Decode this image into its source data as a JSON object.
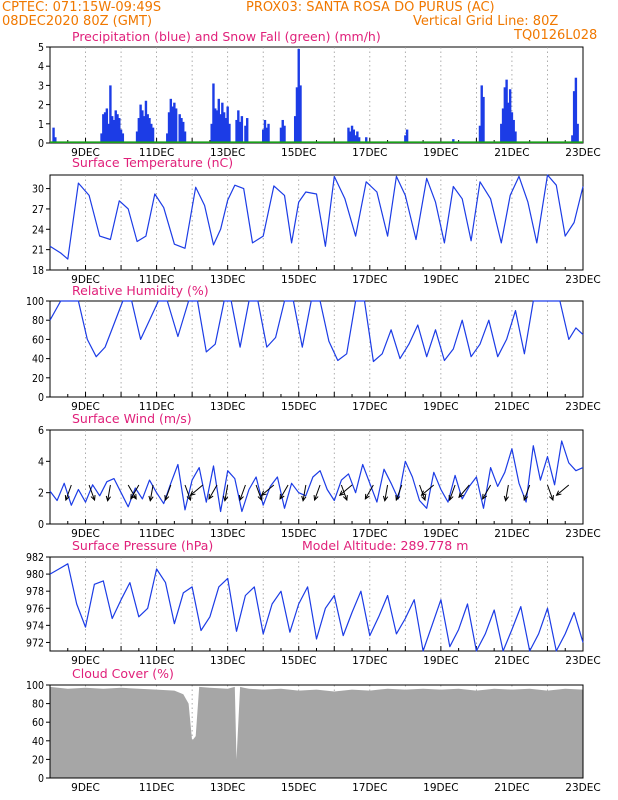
{
  "header": {
    "left_line1": "CPTEC:  071:15W-09:49S",
    "station": "PROX03: SANTA ROSA DO PURUS (AC)",
    "left_line2": "08DEC2020 80Z (GMT)",
    "grid_note": "Vertical Grid Line: 80Z",
    "model_code": "TQ0126L028"
  },
  "colors": {
    "header": "#f07800",
    "title": "#e0207a",
    "series": "#1c3ce6",
    "snow": "#1aa01a",
    "cloud": "#a6a6a6",
    "grid": "#999999"
  },
  "x_axis": {
    "day_labels": [
      "9DEC",
      "11DEC",
      "13DEC",
      "15DEC",
      "17DEC",
      "19DEC",
      "21DEC",
      "23DEC"
    ]
  },
  "chart_data": [
    {
      "type": "bar",
      "title": "Precipitation (blue) and Snow Fall (green) (mm/h)",
      "ylim": [
        0,
        5
      ],
      "yticks": [
        "0",
        "1",
        "2",
        "3",
        "4",
        "5"
      ],
      "x_unit": "day of Dec 2020",
      "series": [
        {
          "name": "Precipitation",
          "color": "#1c3ce6",
          "x": [
            8.1,
            8.15,
            9.45,
            9.5,
            9.55,
            9.6,
            9.65,
            9.7,
            9.75,
            9.8,
            9.85,
            9.9,
            9.95,
            10.0,
            10.05,
            10.45,
            10.5,
            10.55,
            10.6,
            10.65,
            10.7,
            10.75,
            10.8,
            10.85,
            10.9,
            11.3,
            11.35,
            11.4,
            11.45,
            11.5,
            11.55,
            11.65,
            11.7,
            11.75,
            11.8,
            12.55,
            12.6,
            12.65,
            12.7,
            12.75,
            12.8,
            12.85,
            12.9,
            12.95,
            13.0,
            13.05,
            13.25,
            13.3,
            13.35,
            13.4,
            13.5,
            13.55,
            14.0,
            14.05,
            14.1,
            14.15,
            14.5,
            14.55,
            14.6,
            14.9,
            14.95,
            15.0,
            15.05,
            16.4,
            16.45,
            16.5,
            16.55,
            16.6,
            16.65,
            16.7,
            16.9,
            18.0,
            18.05,
            19.35,
            20.1,
            20.15,
            20.2,
            20.7,
            20.75,
            20.8,
            20.85,
            20.9,
            20.95,
            21.0,
            21.05,
            21.1,
            22.7,
            22.75,
            22.8,
            22.85
          ],
          "values": [
            0.8,
            0.3,
            0.5,
            1.5,
            1.6,
            1.8,
            1.0,
            3.0,
            1.4,
            1.2,
            1.7,
            1.5,
            1.3,
            0.7,
            0.5,
            0.6,
            1.3,
            2.0,
            1.7,
            1.4,
            2.2,
            1.5,
            1.3,
            1.0,
            0.8,
            0.5,
            1.6,
            2.3,
            1.9,
            2.1,
            1.8,
            1.5,
            1.3,
            1.1,
            0.6,
            1.0,
            3.1,
            1.8,
            1.7,
            2.3,
            1.5,
            2.1,
            1.6,
            1.3,
            1.9,
            1.0,
            1.2,
            1.7,
            1.1,
            1.4,
            0.9,
            1.3,
            0.7,
            1.2,
            0.8,
            1.0,
            0.8,
            1.2,
            0.9,
            1.4,
            2.9,
            4.9,
            3.0,
            0.8,
            0.6,
            0.9,
            0.7,
            0.4,
            0.6,
            0.3,
            0.3,
            0.4,
            0.7,
            0.2,
            0.9,
            3.0,
            2.4,
            1.0,
            1.8,
            2.9,
            3.3,
            2.1,
            2.8,
            1.6,
            1.2,
            0.6,
            0.4,
            2.7,
            3.4,
            1.0
          ]
        },
        {
          "name": "Snow Fall",
          "color": "#1aa01a",
          "x": [
            8.0,
            23.0
          ],
          "values": [
            0,
            0
          ]
        }
      ]
    },
    {
      "type": "line",
      "title": "Surface Temperature (nC)",
      "ylim": [
        18,
        32
      ],
      "yticks": [
        "18",
        "21",
        "24",
        "27",
        "30"
      ],
      "series": [
        {
          "name": "Surface Temperature",
          "color": "#1c3ce6",
          "x": [
            8.0,
            8.3,
            8.5,
            8.8,
            9.1,
            9.4,
            9.7,
            9.95,
            10.2,
            10.45,
            10.7,
            10.95,
            11.2,
            11.5,
            11.8,
            12.1,
            12.35,
            12.6,
            12.8,
            13.0,
            13.2,
            13.45,
            13.7,
            14.0,
            14.3,
            14.6,
            14.8,
            15.0,
            15.2,
            15.5,
            15.75,
            16.0,
            16.3,
            16.6,
            16.9,
            17.2,
            17.5,
            17.75,
            18.0,
            18.3,
            18.6,
            18.85,
            19.1,
            19.35,
            19.6,
            19.85,
            20.1,
            20.4,
            20.7,
            20.95,
            21.2,
            21.45,
            21.7,
            22.0,
            22.25,
            22.5,
            22.75,
            23.0
          ],
          "values": [
            21.5,
            20.5,
            19.6,
            30.8,
            29.0,
            23.0,
            22.5,
            28.2,
            27.0,
            22.2,
            23.0,
            29.2,
            27.2,
            21.8,
            21.2,
            30.2,
            27.5,
            21.7,
            24.0,
            28.3,
            30.5,
            30.0,
            22.0,
            23.0,
            30.4,
            29.0,
            22.0,
            28.0,
            29.5,
            29.2,
            21.5,
            31.8,
            28.5,
            23.0,
            31.0,
            29.5,
            23.0,
            31.8,
            29.0,
            22.5,
            31.5,
            28.0,
            22.0,
            30.3,
            28.5,
            22.3,
            31.0,
            28.5,
            22.0,
            29.0,
            31.8,
            28.0,
            22.0,
            32.0,
            30.5,
            23.0,
            25.0,
            30.3
          ]
        }
      ]
    },
    {
      "type": "line",
      "title": "Relative Humidity (%)",
      "ylim": [
        0,
        100
      ],
      "yticks": [
        "0",
        "20",
        "40",
        "60",
        "80",
        "100"
      ],
      "series": [
        {
          "name": "Relative Humidity",
          "color": "#1c3ce6",
          "x": [
            8.0,
            8.3,
            8.55,
            8.8,
            9.05,
            9.3,
            9.55,
            9.8,
            10.05,
            10.3,
            10.55,
            10.8,
            11.05,
            11.3,
            11.6,
            11.9,
            12.15,
            12.4,
            12.65,
            12.9,
            13.1,
            13.35,
            13.6,
            13.85,
            14.1,
            14.35,
            14.6,
            14.85,
            15.1,
            15.35,
            15.6,
            15.85,
            16.1,
            16.35,
            16.6,
            16.85,
            17.1,
            17.35,
            17.6,
            17.85,
            18.1,
            18.35,
            18.6,
            18.85,
            19.1,
            19.35,
            19.6,
            19.85,
            20.1,
            20.35,
            20.6,
            20.85,
            21.1,
            21.35,
            21.6,
            21.85,
            22.1,
            22.35,
            22.6,
            22.8,
            23.0
          ],
          "values": [
            80,
            100,
            100,
            100,
            60,
            42,
            52,
            76,
            100,
            100,
            60,
            80,
            100,
            100,
            63,
            100,
            100,
            47,
            55,
            100,
            100,
            52,
            100,
            100,
            52,
            62,
            100,
            100,
            52,
            100,
            100,
            58,
            38,
            45,
            100,
            100,
            37,
            45,
            70,
            40,
            55,
            75,
            42,
            70,
            38,
            50,
            80,
            42,
            55,
            80,
            42,
            60,
            90,
            45,
            100,
            100,
            100,
            100,
            60,
            72,
            65
          ]
        }
      ]
    },
    {
      "type": "line",
      "title": "Surface Wind (m/s)",
      "ylim": [
        0,
        6
      ],
      "yticks": [
        "0",
        "2",
        "4",
        "6"
      ],
      "series": [
        {
          "name": "Surface Wind",
          "color": "#1c3ce6",
          "x": [
            8.0,
            8.2,
            8.4,
            8.6,
            8.8,
            9.0,
            9.2,
            9.4,
            9.6,
            9.8,
            10.0,
            10.2,
            10.4,
            10.6,
            10.8,
            11.0,
            11.2,
            11.4,
            11.6,
            11.8,
            12.0,
            12.2,
            12.4,
            12.6,
            12.8,
            13.0,
            13.2,
            13.4,
            13.6,
            13.8,
            14.0,
            14.2,
            14.4,
            14.6,
            14.8,
            15.0,
            15.2,
            15.4,
            15.6,
            15.8,
            16.0,
            16.2,
            16.4,
            16.6,
            16.8,
            17.0,
            17.2,
            17.4,
            17.6,
            17.8,
            18.0,
            18.2,
            18.4,
            18.6,
            18.8,
            19.0,
            19.2,
            19.4,
            19.6,
            19.8,
            20.0,
            20.2,
            20.4,
            20.6,
            20.8,
            21.0,
            21.2,
            21.4,
            21.6,
            21.8,
            22.0,
            22.2,
            22.4,
            22.6,
            22.8,
            23.0
          ],
          "values": [
            2.1,
            1.5,
            2.6,
            1.2,
            2.2,
            1.4,
            2.5,
            1.8,
            2.7,
            2.9,
            2.0,
            1.1,
            2.3,
            1.6,
            2.8,
            2.0,
            1.3,
            2.6,
            3.8,
            0.9,
            2.8,
            3.6,
            1.4,
            3.7,
            0.8,
            3.4,
            2.9,
            0.8,
            2.2,
            3.0,
            1.2,
            2.4,
            3.0,
            1.0,
            2.6,
            2.0,
            1.8,
            3.0,
            3.4,
            2.2,
            1.5,
            2.8,
            3.2,
            2.0,
            3.8,
            2.6,
            1.4,
            3.5,
            2.6,
            1.6,
            4.0,
            3.0,
            1.5,
            1.0,
            3.3,
            2.2,
            1.4,
            3.1,
            1.6,
            2.4,
            3.0,
            1.0,
            3.6,
            2.4,
            3.3,
            4.8,
            2.6,
            1.4,
            5.0,
            2.8,
            4.3,
            2.5,
            5.3,
            3.9,
            3.4,
            3.6
          ]
        }
      ],
      "arrows_x": [
        8.6,
        9.1,
        9.7,
        10.2,
        10.5,
        10.9,
        11.4,
        11.8,
        12.3,
        12.7,
        13.0,
        13.5,
        13.8,
        14.3,
        14.7,
        15.2,
        15.6,
        16.2,
        16.5,
        17.1,
        17.5,
        17.9,
        18.4,
        18.8,
        19.4,
        19.8,
        20.4,
        20.9,
        21.5,
        22.0,
        22.6
      ],
      "arrows_dir_deg": [
        200,
        160,
        190,
        150,
        210,
        190,
        200,
        160,
        230,
        210,
        190,
        200,
        160,
        230,
        210,
        190,
        200,
        160,
        230,
        210,
        190,
        200,
        160,
        230,
        200,
        220,
        210,
        190,
        200,
        160,
        230
      ]
    },
    {
      "type": "line",
      "title": "Surface Pressure (hPa)",
      "annotation": "Model Altitude: 289.778 m",
      "ylim": [
        971,
        982
      ],
      "yticks": [
        "972",
        "974",
        "976",
        "978",
        "980",
        "982"
      ],
      "series": [
        {
          "name": "Surface Pressure",
          "color": "#1c3ce6",
          "x": [
            8.0,
            8.25,
            8.5,
            8.75,
            9.0,
            9.25,
            9.5,
            9.75,
            10.0,
            10.25,
            10.5,
            10.75,
            11.0,
            11.25,
            11.5,
            11.75,
            12.0,
            12.25,
            12.5,
            12.75,
            13.0,
            13.25,
            13.5,
            13.75,
            14.0,
            14.25,
            14.5,
            14.75,
            15.0,
            15.25,
            15.5,
            15.75,
            16.0,
            16.25,
            16.5,
            16.75,
            17.0,
            17.25,
            17.5,
            17.75,
            18.0,
            18.25,
            18.5,
            18.75,
            19.0,
            19.25,
            19.5,
            19.75,
            20.0,
            20.25,
            20.5,
            20.75,
            21.0,
            21.25,
            21.5,
            21.75,
            22.0,
            22.25,
            22.5,
            22.75,
            23.0
          ],
          "values": [
            980.0,
            980.6,
            981.2,
            976.5,
            973.8,
            978.8,
            979.2,
            974.8,
            977.0,
            979.0,
            975.0,
            976.0,
            980.6,
            979.0,
            974.2,
            977.8,
            978.5,
            973.4,
            975.0,
            978.5,
            979.5,
            973.3,
            977.5,
            978.5,
            973.0,
            976.5,
            978.0,
            973.2,
            976.5,
            978.5,
            972.4,
            976.0,
            977.5,
            972.8,
            975.5,
            978.0,
            972.8,
            975.0,
            977.5,
            973.0,
            974.8,
            977.0,
            971.0,
            974.0,
            977.0,
            971.5,
            973.5,
            976.5,
            971.0,
            973.0,
            975.8,
            970.8,
            973.5,
            976.2,
            971.0,
            973.0,
            976.0,
            970.5,
            973.0,
            975.5,
            972.0
          ]
        }
      ]
    },
    {
      "type": "area",
      "title": "Cloud Cover (%)",
      "ylim": [
        0,
        100
      ],
      "yticks": [
        "0",
        "20",
        "40",
        "60",
        "80",
        "100"
      ],
      "series": [
        {
          "name": "Cloud Cover",
          "color": "#a6a6a6",
          "x": [
            8.0,
            8.5,
            9.0,
            9.5,
            10.0,
            10.5,
            11.0,
            11.5,
            11.75,
            11.9,
            12.0,
            12.1,
            12.2,
            12.5,
            13.0,
            13.2,
            13.25,
            13.35,
            13.45,
            13.6,
            14.0,
            14.5,
            15.0,
            15.5,
            16.0,
            16.5,
            17.0,
            17.5,
            18.0,
            18.5,
            19.0,
            19.5,
            20.0,
            20.5,
            21.0,
            21.5,
            22.0,
            22.5,
            23.0
          ],
          "values": [
            98,
            96,
            97,
            96,
            97,
            96,
            95,
            94,
            90,
            80,
            40,
            45,
            98,
            97,
            96,
            98,
            20,
            98,
            97,
            96,
            95,
            96,
            94,
            95,
            93,
            95,
            94,
            96,
            95,
            96,
            95,
            96,
            94,
            96,
            95,
            96,
            94,
            96,
            95
          ]
        }
      ]
    }
  ]
}
